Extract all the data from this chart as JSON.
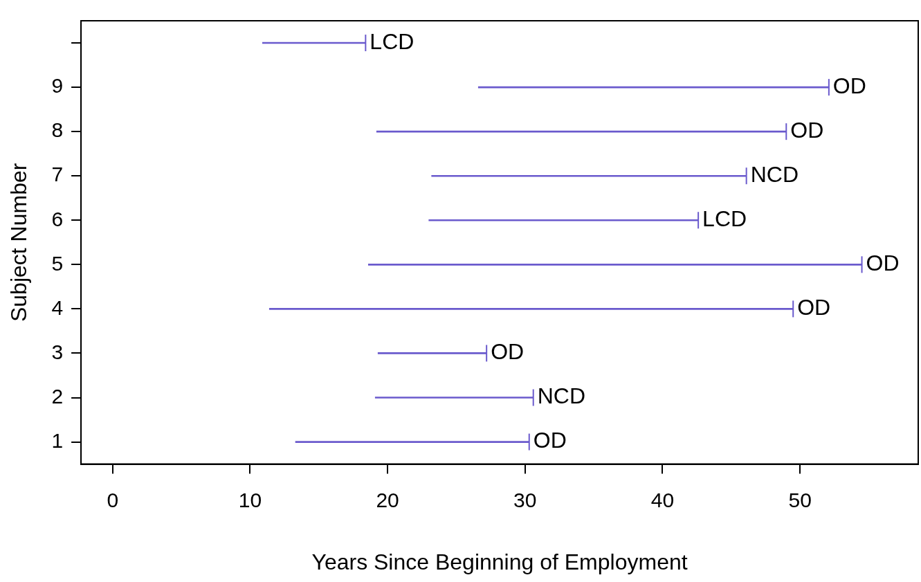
{
  "chart_data": {
    "type": "bar",
    "orientation": "horizontal",
    "xlabel": "Years Since Beginning of Employment",
    "ylabel": "Subject Number",
    "categories": [
      null,
      "9",
      "8",
      "7",
      "6",
      "5",
      "4",
      "3",
      "2",
      "1"
    ],
    "base": [
      10.9,
      26.6,
      19.2,
      23.2,
      23.0,
      18.6,
      11.4,
      19.3,
      19.1,
      13.3
    ],
    "values": [
      7.5,
      25.5,
      29.8,
      22.9,
      19.6,
      35.9,
      38.1,
      7.9,
      11.5,
      17.0
    ],
    "value_labels": [
      "LCD",
      "OD",
      "OD",
      "NCD",
      "LCD",
      "OD",
      "OD",
      "OD",
      "NCD",
      "OD"
    ],
    "color": "#6a5acd",
    "xlim": [
      -2.3,
      58.6
    ],
    "xticks": [
      0,
      10,
      20,
      30,
      40,
      50
    ],
    "grid": false,
    "legend": false
  }
}
